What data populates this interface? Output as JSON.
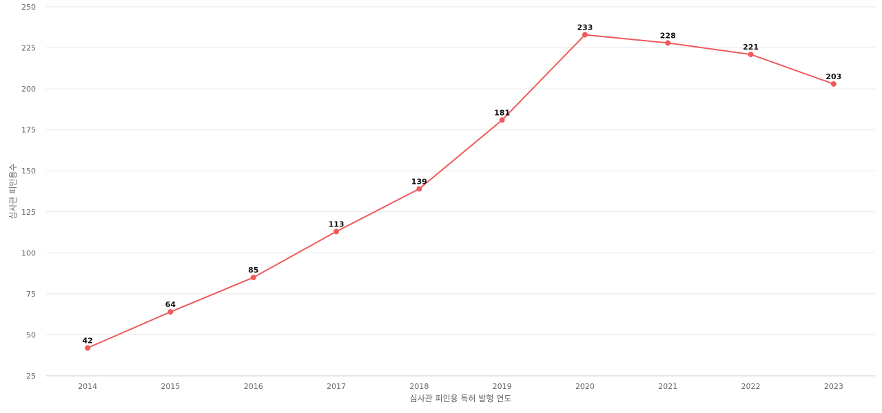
{
  "chart_data": {
    "type": "line",
    "title": "",
    "xlabel": "심사관 피인용 특허 발행 연도",
    "ylabel": "심사관 피인용수",
    "categories": [
      "2014",
      "2015",
      "2016",
      "2017",
      "2018",
      "2019",
      "2020",
      "2021",
      "2022",
      "2023"
    ],
    "series": [
      {
        "values": [
          42,
          64,
          85,
          113,
          139,
          181,
          233,
          228,
          221,
          203
        ]
      }
    ],
    "ylim": [
      25,
      250
    ],
    "yticks": [
      25,
      50,
      75,
      100,
      125,
      150,
      175,
      200,
      225,
      250
    ],
    "grid": true,
    "legend": "none",
    "colors": {
      "line": "#ef5b5b",
      "grid": "#e6e6e6"
    }
  }
}
